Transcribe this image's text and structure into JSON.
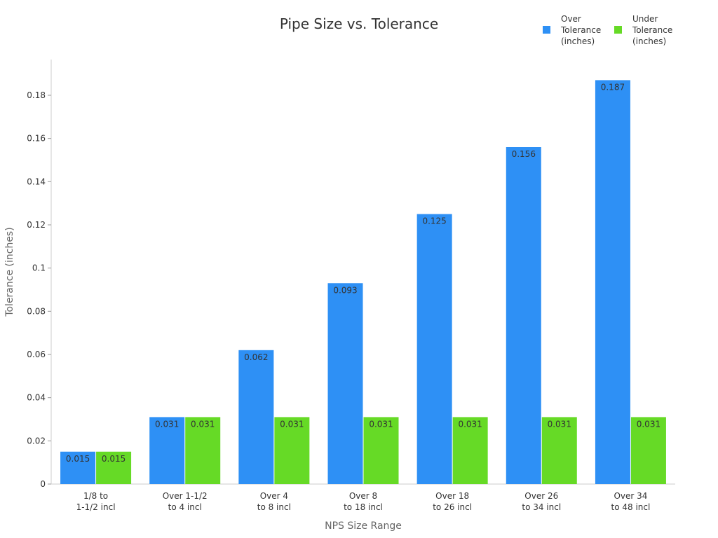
{
  "chart_data": {
    "type": "bar",
    "title": "Pipe Size vs. Tolerance",
    "xlabel": "NPS Size Range",
    "ylabel": "Tolerance (inches)",
    "ylim": [
      0,
      0.196
    ],
    "yticks": [
      "0",
      "0.02",
      "0.04",
      "0.06",
      "0.08",
      "0.1",
      "0.12",
      "0.14",
      "0.16",
      "0.18"
    ],
    "categories": [
      [
        "1/8 to",
        "1-1/2 incl"
      ],
      [
        "Over 1-1/2",
        "to 4 incl"
      ],
      [
        "Over 4",
        "to 8 incl"
      ],
      [
        "Over 8",
        "to 18 incl"
      ],
      [
        "Over 18",
        "to 26 incl"
      ],
      [
        "Over 26",
        "to 34 incl"
      ],
      [
        "Over 34",
        "to 48 incl"
      ]
    ],
    "series": [
      {
        "name": "Over Tolerance (inches)",
        "color": "#2E90F5",
        "values": [
          0.015,
          0.031,
          0.062,
          0.093,
          0.125,
          0.156,
          0.187
        ],
        "labels": [
          "0.015",
          "0.031",
          "0.062",
          "0.093",
          "0.125",
          "0.156",
          "0.187"
        ]
      },
      {
        "name": "Under Tolerance (inches)",
        "color": "#66DA26",
        "values": [
          0.015,
          0.031,
          0.031,
          0.031,
          0.031,
          0.031,
          0.031
        ],
        "labels": [
          "0.015",
          "0.031",
          "0.031",
          "0.031",
          "0.031",
          "0.031",
          "0.031"
        ]
      }
    ],
    "legend": "top-right",
    "grid": false
  }
}
